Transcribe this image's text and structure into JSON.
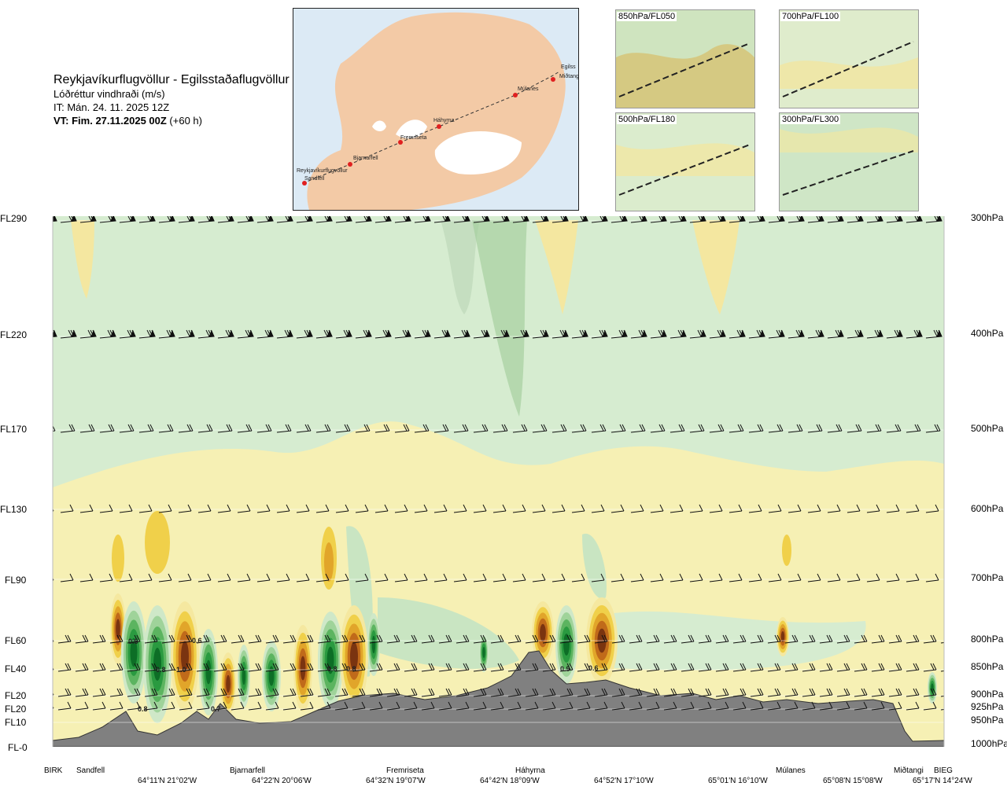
{
  "header": {
    "title": "Reykjavíkurflugvöllur - Egilsstaðaflugvöllur",
    "quantity": "Lóðréttur vindhraði (m/s)",
    "it": "IT: Mán. 24. 11. 2025 12Z",
    "vt_bold": "VT: Fim. 27.11.2025 00Z",
    "vt_rest": " (+60 h)"
  },
  "route_map": {
    "waypoints": [
      "Reykjavíkurflugvöllur",
      "Sandfell",
      "Bjarnarfell",
      "Fremriseta",
      "Háhyrna",
      "Múlanes",
      "Miðtangi",
      "Egilss"
    ]
  },
  "mini_maps": [
    "850hPa/FL050",
    "700hPa/FL100",
    "500hPa/FL180",
    "300hPa/FL300"
  ],
  "flight_levels": [
    "FL290",
    "FL220",
    "FL170",
    "FL130",
    "FL90",
    "FL60",
    "FL40",
    "FL20",
    "FL20",
    "FL10",
    "FL-0"
  ],
  "pressure_levels": [
    "300hPa",
    "400hPa",
    "500hPa",
    "600hPa",
    "700hPa",
    "800hPa",
    "850hPa",
    "900hPa",
    "925hPa",
    "950hPa",
    "1000hPa"
  ],
  "x_labels": [
    "BIRK",
    "Sandfell",
    "Bjarnarfell",
    "Fremriseta",
    "Háhyrna",
    "Múlanes",
    "Miðtangi",
    "BIEG"
  ],
  "coords": [
    "64°11'N 21°02'W",
    "64°22'N 20°06'W",
    "64°32'N 19°07'W",
    "64°42'N 18°09'W",
    "64°52'N 17°10'W",
    "65°01'N 16°10'W",
    "65°08'N 15°08'W",
    "65°17'N 14°24'W"
  ],
  "contour_labels": [
    "0.6",
    "0.6",
    "0.8",
    "-1.0",
    "0.7",
    "0.8",
    "0.8",
    "0.8",
    "0.9",
    "0.6"
  ],
  "chart_data": {
    "type": "heatmap",
    "title": "Lóðréttur vindhraði (m/s)",
    "y_levels_hpa": [
      300,
      400,
      500,
      600,
      700,
      800,
      850,
      900,
      925,
      950,
      1000
    ],
    "y_levels_fl": [
      "FL290",
      "FL220",
      "FL170",
      "FL130",
      "FL90",
      "FL60",
      "FL40",
      "FL20",
      "FL20",
      "FL10",
      "FL-0"
    ],
    "x_stations": [
      "BIRK",
      "Sandfell",
      "Bjarnarfell",
      "Fremriseta",
      "Háhyrna",
      "Múlanes",
      "Miðtangi",
      "BIEG"
    ],
    "colors": {
      "strong_down": "#7a3a10",
      "down": "#c8801e",
      "weak_down": "#f2dc8a",
      "neutral": "#f7f2b8",
      "weak_up": "#d8ecd0",
      "up": "#6cbf6a",
      "strong_up": "#0f7a2c",
      "terrain": "#7a7a7a"
    },
    "terrain_max_hpa": 820
  }
}
